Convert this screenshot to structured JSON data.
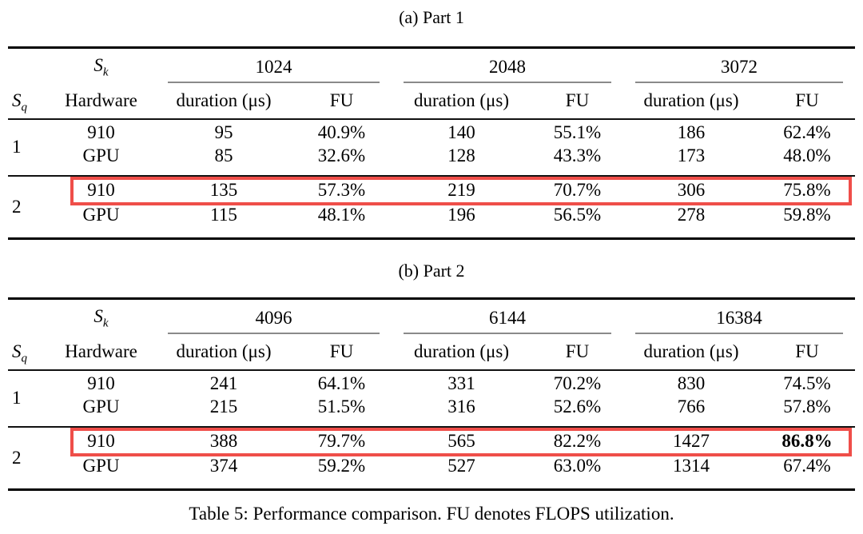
{
  "caption": "Table 5: Performance comparison. FU denotes FLOPS utilization.",
  "highlight_color": "#ef4e49",
  "header": {
    "sk_label": {
      "base": "S",
      "sub": "k"
    },
    "sq_label": {
      "base": "S",
      "sub": "q"
    },
    "hardware_label": "Hardware",
    "duration_label": "duration (μs)",
    "fu_label": "FU"
  },
  "tables": [
    {
      "subtitle": "(a) Part 1",
      "sk_values": [
        "1024",
        "2048",
        "3072"
      ],
      "row_groups": [
        {
          "sq": "1",
          "rows": [
            {
              "hardware": "910",
              "values": [
                "95",
                "40.9%",
                "140",
                "55.1%",
                "186",
                "62.4%"
              ],
              "highlighted": false,
              "bold": []
            },
            {
              "hardware": "GPU",
              "values": [
                "85",
                "32.6%",
                "128",
                "43.3%",
                "173",
                "48.0%"
              ],
              "highlighted": false,
              "bold": []
            }
          ]
        },
        {
          "sq": "2",
          "rows": [
            {
              "hardware": "910",
              "values": [
                "135",
                "57.3%",
                "219",
                "70.7%",
                "306",
                "75.8%"
              ],
              "highlighted": true,
              "bold": []
            },
            {
              "hardware": "GPU",
              "values": [
                "115",
                "48.1%",
                "196",
                "56.5%",
                "278",
                "59.8%"
              ],
              "highlighted": false,
              "bold": []
            }
          ]
        }
      ]
    },
    {
      "subtitle": "(b) Part 2",
      "sk_values": [
        "4096",
        "6144",
        "16384"
      ],
      "row_groups": [
        {
          "sq": "1",
          "rows": [
            {
              "hardware": "910",
              "values": [
                "241",
                "64.1%",
                "331",
                "70.2%",
                "830",
                "74.5%"
              ],
              "highlighted": false,
              "bold": []
            },
            {
              "hardware": "GPU",
              "values": [
                "215",
                "51.5%",
                "316",
                "52.6%",
                "766",
                "57.8%"
              ],
              "highlighted": false,
              "bold": []
            }
          ]
        },
        {
          "sq": "2",
          "rows": [
            {
              "hardware": "910",
              "values": [
                "388",
                "79.7%",
                "565",
                "82.2%",
                "1427",
                "86.8%"
              ],
              "highlighted": true,
              "bold": [
                5
              ]
            },
            {
              "hardware": "GPU",
              "values": [
                "374",
                "59.2%",
                "527",
                "63.0%",
                "1314",
                "67.4%"
              ],
              "highlighted": false,
              "bold": []
            }
          ]
        }
      ]
    }
  ]
}
